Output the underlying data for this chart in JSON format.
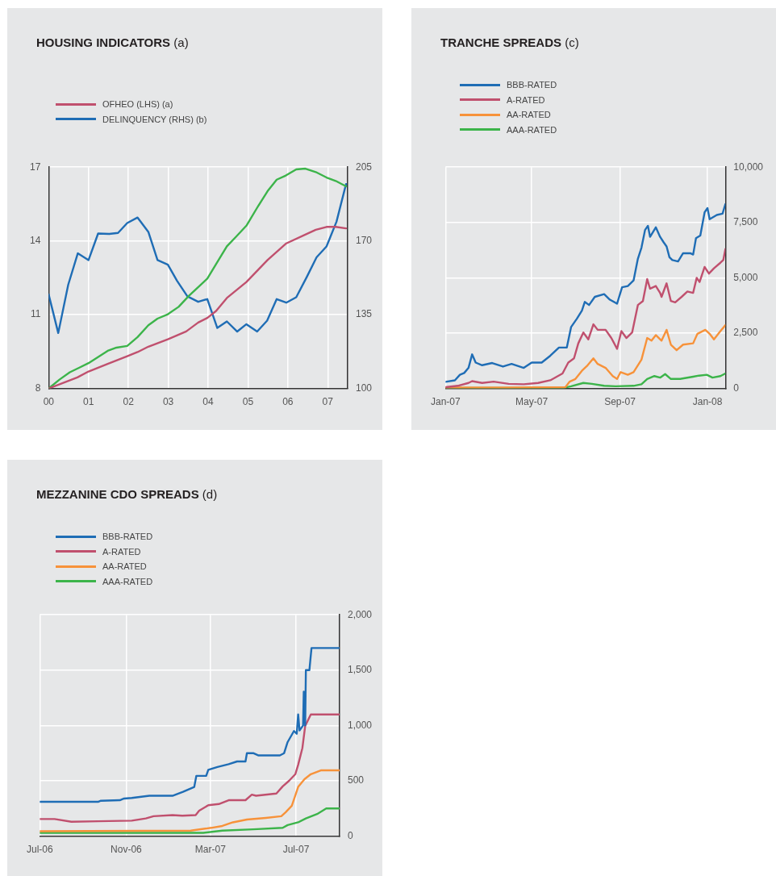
{
  "chart_data": [
    {
      "type": "line",
      "title": "HOUSING INDICATORS (a)",
      "legend": "top left",
      "grid": true,
      "marker": "none",
      "line_style": "solid",
      "xlim": [
        2000,
        2007.5
      ],
      "xticks": [
        {
          "value": 2000,
          "label": "00"
        },
        {
          "value": 2001,
          "label": "01"
        },
        {
          "value": 2002,
          "label": "02"
        },
        {
          "value": 2003,
          "label": "03"
        },
        {
          "value": 2004,
          "label": "04"
        },
        {
          "value": 2005,
          "label": "05"
        },
        {
          "value": 2006,
          "label": "06"
        },
        {
          "value": 2007,
          "label": "07"
        }
      ],
      "ylim": [
        8,
        17
      ],
      "yticks": [
        8,
        11,
        14,
        17
      ],
      "y2lim": [
        100,
        205
      ],
      "y2ticks": [
        100,
        135,
        170,
        205
      ],
      "series": [
        {
          "name": "OFHEO (LHS) (a)",
          "color": "#c0506e",
          "x": [
            2000,
            2000.72,
            2001,
            2001.48,
            2001.97,
            2002.23,
            2002.5,
            2002.99,
            2003.45,
            2003.75,
            2003.98,
            2004.2,
            2004.47,
            2004.96,
            2005.49,
            2005.95,
            2006.48,
            2006.7,
            2006.97,
            2007.2,
            2007.46
          ],
          "values": [
            8.0,
            8.45,
            8.69,
            9.0,
            9.31,
            9.48,
            9.7,
            10.0,
            10.32,
            10.68,
            10.87,
            11.15,
            11.68,
            12.33,
            13.22,
            13.89,
            14.29,
            14.45,
            14.57,
            14.57,
            14.51
          ]
        },
        {
          "color": "#3cb44a",
          "x": [
            2000,
            2000.27,
            2000.53,
            2000.76,
            2001,
            2001.48,
            2001.7,
            2001.97,
            2002.23,
            2002.5,
            2002.73,
            2002.99,
            2003.26,
            2003.52,
            2003.98,
            2004.2,
            2004.47,
            2004.7,
            2004.96,
            2005.23,
            2005.49,
            2005.72,
            2005.95,
            2006.21,
            2006.44,
            2006.7,
            2006.97,
            2007.2,
            2007.46
          ],
          "values": [
            8.0,
            8.36,
            8.66,
            8.84,
            9.03,
            9.53,
            9.66,
            9.73,
            10.09,
            10.57,
            10.84,
            11.02,
            11.32,
            11.77,
            12.47,
            13.06,
            13.78,
            14.17,
            14.62,
            15.35,
            16.02,
            16.49,
            16.66,
            16.91,
            16.94,
            16.8,
            16.58,
            16.44,
            16.22
          ]
        },
        {
          "name": "DELINQUENCY (RHS) (b)",
          "color": "#1f6db5",
          "axis": "y2",
          "x": [
            2000,
            2000.24,
            2000.49,
            2000.73,
            2001,
            2001.24,
            2001.52,
            2001.74,
            2001.97,
            2002.23,
            2002.5,
            2002.73,
            2002.99,
            2003.22,
            2003.48,
            2003.75,
            2003.98,
            2004.23,
            2004.47,
            2004.73,
            2004.96,
            2005.23,
            2005.48,
            2005.72,
            2005.96,
            2006.21,
            2006.48,
            2006.72,
            2006.97,
            2007.22,
            2007.46
          ],
          "values": [
            144.6,
            126.3,
            149.2,
            164.1,
            160.9,
            173.5,
            173.3,
            173.8,
            178.5,
            181.1,
            174.3,
            160.9,
            158.7,
            151.1,
            143.7,
            141.1,
            142.4,
            128.7,
            131.8,
            127.0,
            130.5,
            127.0,
            132.2,
            142.4,
            140.7,
            143.3,
            153.1,
            162.2,
            167.4,
            179.1,
            197.0
          ]
        }
      ]
    },
    {
      "type": "line",
      "title": "TRANCHE SPREADS (c)",
      "legend": "top left",
      "grid": true,
      "marker": "none",
      "line_style": "solid",
      "xlim": [
        "2007-01-01",
        "2008-01-26"
      ],
      "xticks": [
        {
          "value": "2007-01-01",
          "label": "Jan-07"
        },
        {
          "value": "2007-05-01",
          "label": "May-07"
        },
        {
          "value": "2007-09-01",
          "label": "Sep-07"
        },
        {
          "value": "2008-01-01",
          "label": "Jan-08"
        }
      ],
      "ylim": [
        0,
        10000
      ],
      "yticks": [
        0,
        {
          "value": 2500,
          "label": "2,500"
        },
        {
          "value": 5000,
          "label": "5,000"
        },
        {
          "value": 7500,
          "label": "7,500"
        },
        {
          "value": 10000,
          "label": "10,000"
        }
      ],
      "series": [
        {
          "name": "BBB-RATED",
          "color": "#1f6db5",
          "x": [
            "2007-01-01",
            "2007-01-14",
            "2007-01-21",
            "2007-01-27",
            "2007-02-02",
            "2007-02-07",
            "2007-02-12",
            "2007-02-21",
            "2007-03-07",
            "2007-03-22",
            "2007-04-03",
            "2007-04-20",
            "2007-05-01",
            "2007-05-15",
            "2007-05-27",
            "2007-06-08",
            "2007-06-19",
            "2007-06-25",
            "2007-07-03",
            "2007-07-10",
            "2007-07-14",
            "2007-07-20",
            "2007-07-28",
            "2007-08-10",
            "2007-08-18",
            "2007-08-28",
            "2007-09-04",
            "2007-09-12",
            "2007-09-20",
            "2007-09-26",
            "2007-10-01",
            "2007-10-06",
            "2007-10-10",
            "2007-10-13",
            "2007-10-21",
            "2007-10-27",
            "2007-11-01",
            "2007-11-05",
            "2007-11-09",
            "2007-11-13",
            "2007-11-21",
            "2007-11-28",
            "2007-12-08",
            "2007-12-12",
            "2007-12-16",
            "2007-12-22",
            "2007-12-28",
            "2008-01-01",
            "2008-01-04",
            "2008-01-14",
            "2008-01-22",
            "2008-01-26"
          ],
          "values": [
            300,
            370,
            620,
            700,
            930,
            1540,
            1170,
            1050,
            1150,
            990,
            1110,
            930,
            1170,
            1170,
            1480,
            1850,
            1850,
            2780,
            3150,
            3520,
            3910,
            3770,
            4140,
            4260,
            4010,
            3830,
            4570,
            4630,
            4880,
            5860,
            6360,
            7160,
            7350,
            6850,
            7280,
            6850,
            6600,
            6420,
            5930,
            5800,
            5740,
            6110,
            6110,
            6050,
            6790,
            6910,
            7960,
            8150,
            7650,
            7840,
            7900,
            8330
          ]
        },
        {
          "name": "A-RATED",
          "color": "#c0506e",
          "x": [
            "2007-01-01",
            "2007-01-18",
            "2007-02-02",
            "2007-02-07",
            "2007-02-21",
            "2007-03-09",
            "2007-03-30",
            "2007-04-20",
            "2007-05-10",
            "2007-05-27",
            "2007-06-13",
            "2007-06-21",
            "2007-06-29",
            "2007-07-05",
            "2007-07-12",
            "2007-07-19",
            "2007-07-26",
            "2007-08-01",
            "2007-08-12",
            "2007-08-20",
            "2007-08-28",
            "2007-09-03",
            "2007-09-10",
            "2007-09-18",
            "2007-09-26",
            "2007-10-03",
            "2007-10-09",
            "2007-10-13",
            "2007-10-21",
            "2007-10-27",
            "2007-10-29",
            "2007-11-05",
            "2007-11-11",
            "2007-11-17",
            "2007-11-26",
            "2007-12-04",
            "2007-12-12",
            "2007-12-17",
            "2007-12-21",
            "2007-12-28",
            "2008-01-03",
            "2008-01-10",
            "2008-01-19",
            "2008-01-23",
            "2008-01-26"
          ],
          "values": [
            60,
            120,
            250,
            330,
            250,
            310,
            210,
            190,
            250,
            370,
            680,
            1170,
            1360,
            2040,
            2530,
            2220,
            2900,
            2650,
            2650,
            2280,
            1790,
            2590,
            2280,
            2530,
            3770,
            3950,
            4940,
            4510,
            4630,
            4320,
            4140,
            4750,
            3950,
            3890,
            4140,
            4380,
            4320,
            5000,
            4810,
            5490,
            5190,
            5430,
            5680,
            5800,
            6300
          ]
        },
        {
          "name": "AA-RATED",
          "color": "#f7923a",
          "x": [
            "2007-01-01",
            "2007-03-30",
            "2007-06-17",
            "2007-06-23",
            "2007-07-01",
            "2007-07-10",
            "2007-07-18",
            "2007-07-26",
            "2007-08-01",
            "2007-08-12",
            "2007-08-22",
            "2007-08-28",
            "2007-09-02",
            "2007-09-12",
            "2007-09-20",
            "2007-10-01",
            "2007-10-09",
            "2007-10-15",
            "2007-10-21",
            "2007-10-29",
            "2007-11-05",
            "2007-11-11",
            "2007-11-19",
            "2007-11-28",
            "2007-12-12",
            "2007-12-18",
            "2007-12-29",
            "2008-01-04",
            "2008-01-10",
            "2008-01-19",
            "2008-01-26"
          ],
          "values": [
            40,
            40,
            60,
            310,
            430,
            800,
            1050,
            1360,
            1110,
            930,
            560,
            430,
            740,
            620,
            740,
            1300,
            2280,
            2160,
            2410,
            2160,
            2650,
            1980,
            1730,
            1980,
            2040,
            2470,
            2650,
            2470,
            2220,
            2590,
            2860
          ]
        },
        {
          "name": "AAA-RATED",
          "color": "#3cb44a",
          "x": [
            "2007-01-01",
            "2007-06-13",
            "2007-06-25",
            "2007-07-12",
            "2007-07-24",
            "2007-08-10",
            "2007-08-26",
            "2007-09-20",
            "2007-10-01",
            "2007-10-09",
            "2007-10-19",
            "2007-10-27",
            "2007-11-03",
            "2007-11-11",
            "2007-11-24",
            "2007-12-12",
            "2007-12-20",
            "2007-12-31",
            "2008-01-08",
            "2008-01-19",
            "2008-01-26"
          ],
          "values": [
            20,
            20,
            100,
            250,
            210,
            120,
            100,
            120,
            190,
            430,
            560,
            490,
            650,
            430,
            430,
            530,
            580,
            620,
            490,
            560,
            680
          ]
        }
      ]
    },
    {
      "type": "line",
      "title": "MEZZANINE CDO SPREADS (d)",
      "legend": "top left",
      "grid": true,
      "marker": "none",
      "line_style": "solid",
      "xlim": [
        "2006-07-01",
        "2007-09-01"
      ],
      "xticks": [
        {
          "value": "2006-07-01",
          "label": "Jul-06"
        },
        {
          "value": "2006-11-01",
          "label": "Nov-06"
        },
        {
          "value": "2007-03-01",
          "label": "Mar-07"
        },
        {
          "value": "2007-07-01",
          "label": "Jul-07"
        }
      ],
      "ylim": [
        0,
        2000
      ],
      "yticks": [
        0,
        500,
        {
          "value": 1000,
          "label": "1,000"
        },
        {
          "value": 1500,
          "label": "1,500"
        },
        {
          "value": 2000,
          "label": "2,000"
        }
      ],
      "series": [
        {
          "name": "BBB-RATED",
          "color": "#1f6db5",
          "x": [
            "2006-07-01",
            "2006-09-22",
            "2006-09-26",
            "2006-10-23",
            "2006-10-29",
            "2006-11-09",
            "2006-12-04",
            "2007-01-06",
            "2007-01-21",
            "2007-02-06",
            "2007-02-09",
            "2007-02-23",
            "2007-02-26",
            "2007-03-11",
            "2007-03-27",
            "2007-04-08",
            "2007-04-20",
            "2007-04-22",
            "2007-05-01",
            "2007-05-08",
            "2007-06-08",
            "2007-06-14",
            "2007-06-19",
            "2007-06-28",
            "2007-07-02",
            "2007-07-04",
            "2007-07-06",
            "2007-07-11",
            "2007-07-12",
            "2007-07-14",
            "2007-07-15",
            "2007-07-20",
            "2007-07-23",
            "2007-09-01"
          ],
          "values": [
            310,
            310,
            320,
            325,
            340,
            345,
            365,
            365,
            400,
            445,
            545,
            545,
            600,
            625,
            650,
            675,
            675,
            750,
            750,
            730,
            730,
            750,
            850,
            950,
            925,
            1100,
            955,
            1000,
            1305,
            1000,
            1500,
            1500,
            1700,
            1700
          ]
        },
        {
          "name": "A-RATED",
          "color": "#c0506e",
          "x": [
            "2006-07-01",
            "2006-07-22",
            "2006-08-15",
            "2006-09-22",
            "2006-11-09",
            "2006-11-29",
            "2006-12-10",
            "2007-01-06",
            "2007-01-20",
            "2007-02-08",
            "2007-02-13",
            "2007-02-26",
            "2007-03-13",
            "2007-03-27",
            "2007-04-20",
            "2007-04-29",
            "2007-05-05",
            "2007-06-03",
            "2007-06-12",
            "2007-06-21",
            "2007-06-30",
            "2007-07-04",
            "2007-07-10",
            "2007-07-14",
            "2007-07-22",
            "2007-09-01"
          ],
          "values": [
            155,
            155,
            130,
            135,
            140,
            160,
            180,
            190,
            185,
            190,
            230,
            280,
            290,
            325,
            325,
            375,
            365,
            385,
            450,
            500,
            560,
            645,
            795,
            995,
            1100,
            1100
          ]
        },
        {
          "name": "AA-RATED",
          "color": "#f7923a",
          "x": [
            "2006-07-01",
            "2007-02-01",
            "2007-03-02",
            "2007-03-18",
            "2007-04-02",
            "2007-04-22",
            "2007-05-19",
            "2007-06-10",
            "2007-06-16",
            "2007-06-25",
            "2007-07-04",
            "2007-07-13",
            "2007-07-22",
            "2007-08-06",
            "2007-09-01"
          ],
          "values": [
            45,
            50,
            75,
            92,
            125,
            150,
            165,
            180,
            215,
            275,
            445,
            515,
            560,
            595,
            595
          ]
        },
        {
          "name": "AAA-RATED",
          "color": "#3cb44a",
          "x": [
            "2006-07-01",
            "2007-02-19",
            "2007-03-18",
            "2007-05-01",
            "2007-06-12",
            "2007-06-19",
            "2007-07-04",
            "2007-07-15",
            "2007-07-31",
            "2007-08-13",
            "2007-09-01"
          ],
          "values": [
            30,
            30,
            50,
            62,
            75,
            100,
            125,
            160,
            200,
            250,
            250
          ]
        }
      ]
    }
  ]
}
